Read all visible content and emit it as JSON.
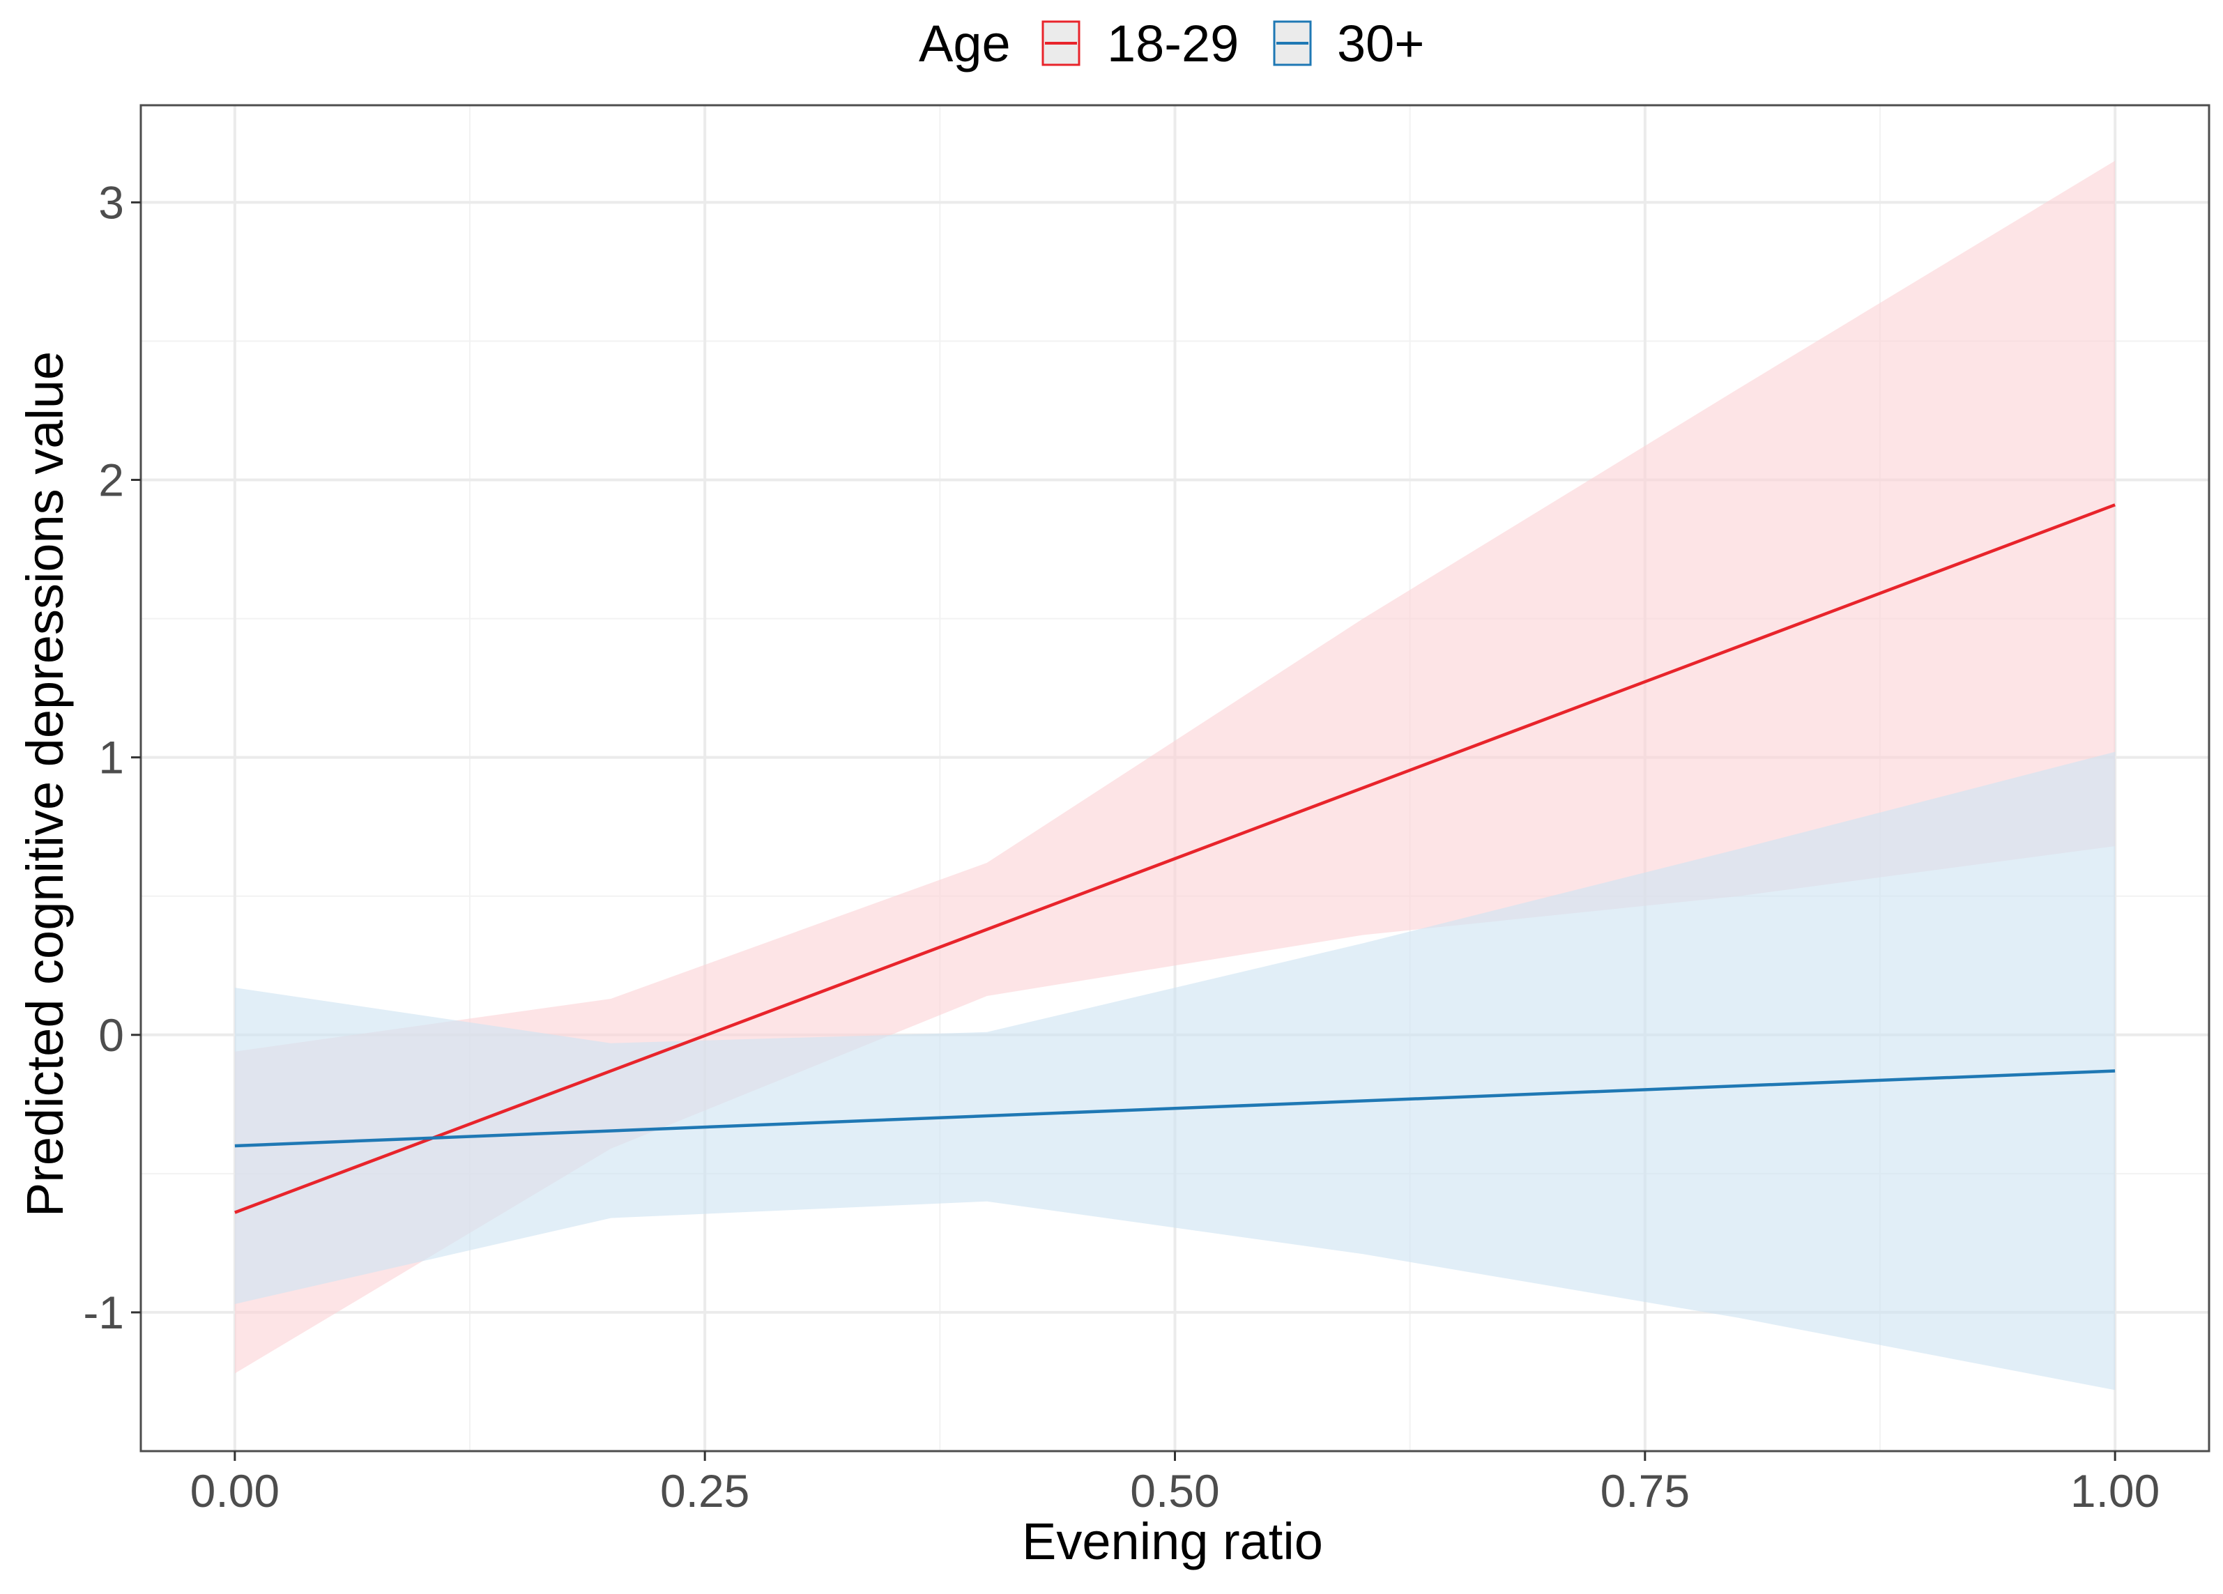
{
  "chart_data": {
    "type": "line",
    "title": "",
    "xlabel": "Evening ratio",
    "ylabel": "Predicted cognitive depressions value",
    "xlim": [
      -0.05,
      1.05
    ],
    "ylim": [
      -1.5,
      3.35
    ],
    "grid": true,
    "x_ticks": [
      0,
      0.25,
      0.5,
      0.75,
      1
    ],
    "x_tick_labels": [
      "0.00",
      "0.25",
      "0.50",
      "0.75",
      "1.00"
    ],
    "x_minor_ticks": [
      0.125,
      0.375,
      0.625,
      0.875
    ],
    "y_ticks": [
      -1,
      0,
      1,
      2,
      3
    ],
    "y_tick_labels": [
      "-1",
      "0",
      "1",
      "2",
      "3"
    ],
    "y_minor_ticks": [
      -0.5,
      0.5,
      1.5,
      2.5
    ],
    "legend": {
      "title": "Age",
      "position": "top"
    },
    "series": [
      {
        "name": "18-29",
        "color": "#e8242b",
        "fill_color": "#fcd4d6",
        "x": [
          0,
          1
        ],
        "values": [
          -0.64,
          1.91
        ],
        "band_x": [
          0,
          0.2,
          0.4,
          0.6,
          0.8,
          1.0
        ],
        "band_upper": [
          -0.06,
          0.13,
          0.62,
          1.5,
          2.33,
          3.15
        ],
        "band_lower": [
          -1.22,
          -0.41,
          0.14,
          0.36,
          0.5,
          0.68
        ]
      },
      {
        "name": "30+",
        "color": "#1f78b4",
        "fill_color": "#cfe4f2",
        "x": [
          0,
          1
        ],
        "values": [
          -0.4,
          -0.13
        ],
        "band_x": [
          0,
          0.2,
          0.4,
          0.6,
          0.8,
          1.0
        ],
        "band_upper": [
          0.17,
          -0.03,
          0.01,
          0.33,
          0.67,
          1.02
        ],
        "band_lower": [
          -0.97,
          -0.66,
          -0.6,
          -0.79,
          -1.02,
          -1.28
        ]
      }
    ]
  }
}
